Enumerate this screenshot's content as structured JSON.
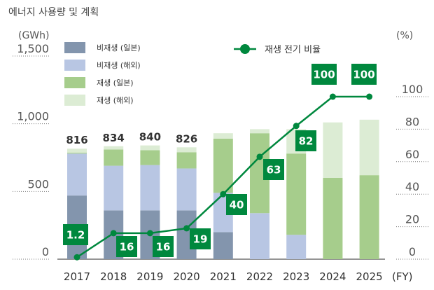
{
  "chart_data": {
    "type": "bar",
    "title": "에너지 사용량 및 계획",
    "left_unit": "(GWh)",
    "right_unit": "(%)",
    "x_unit": "(FY)",
    "categories": [
      "2017",
      "2018",
      "2019",
      "2020",
      "2021",
      "2022",
      "2023",
      "2024",
      "2025"
    ],
    "left_axis": {
      "min": 0,
      "max": 1500,
      "ticks": [
        "0",
        "500",
        "1,000",
        "1,500"
      ],
      "tick_values": [
        0,
        500,
        1000,
        1500
      ]
    },
    "right_axis": {
      "min": 0,
      "max": 120,
      "ticks": [
        "0",
        "20",
        "40",
        "60",
        "80",
        "100"
      ],
      "tick_values": [
        0,
        20,
        40,
        60,
        80,
        100
      ]
    },
    "series": [
      {
        "name": "비재생 (일본)",
        "color": "#8395ad",
        "values": [
          470,
          360,
          360,
          360,
          200,
          0,
          0,
          0,
          0
        ]
      },
      {
        "name": "비재생 (해외)",
        "color": "#b8c6e3",
        "values": [
          310,
          330,
          335,
          310,
          290,
          340,
          180,
          0,
          0
        ]
      },
      {
        "name": "재생 (일본)",
        "color": "#a6cd8c",
        "values": [
          6,
          120,
          110,
          120,
          400,
          590,
          600,
          600,
          620
        ]
      },
      {
        "name": "재생 (해외)",
        "color": "#dcecd4",
        "values": [
          30,
          24,
          35,
          36,
          40,
          30,
          180,
          410,
          410
        ]
      }
    ],
    "totals": [
      "816",
      "834",
      "840",
      "826",
      null,
      null,
      null,
      null,
      null
    ],
    "line": {
      "name": "재생 전기 비율",
      "color": "#00883e",
      "values": [
        1.2,
        16,
        16,
        19,
        40,
        63,
        82,
        100,
        100
      ],
      "labels": [
        "1.2",
        "16",
        "16",
        "19",
        "40",
        "63",
        "82",
        "100",
        "100"
      ]
    }
  }
}
